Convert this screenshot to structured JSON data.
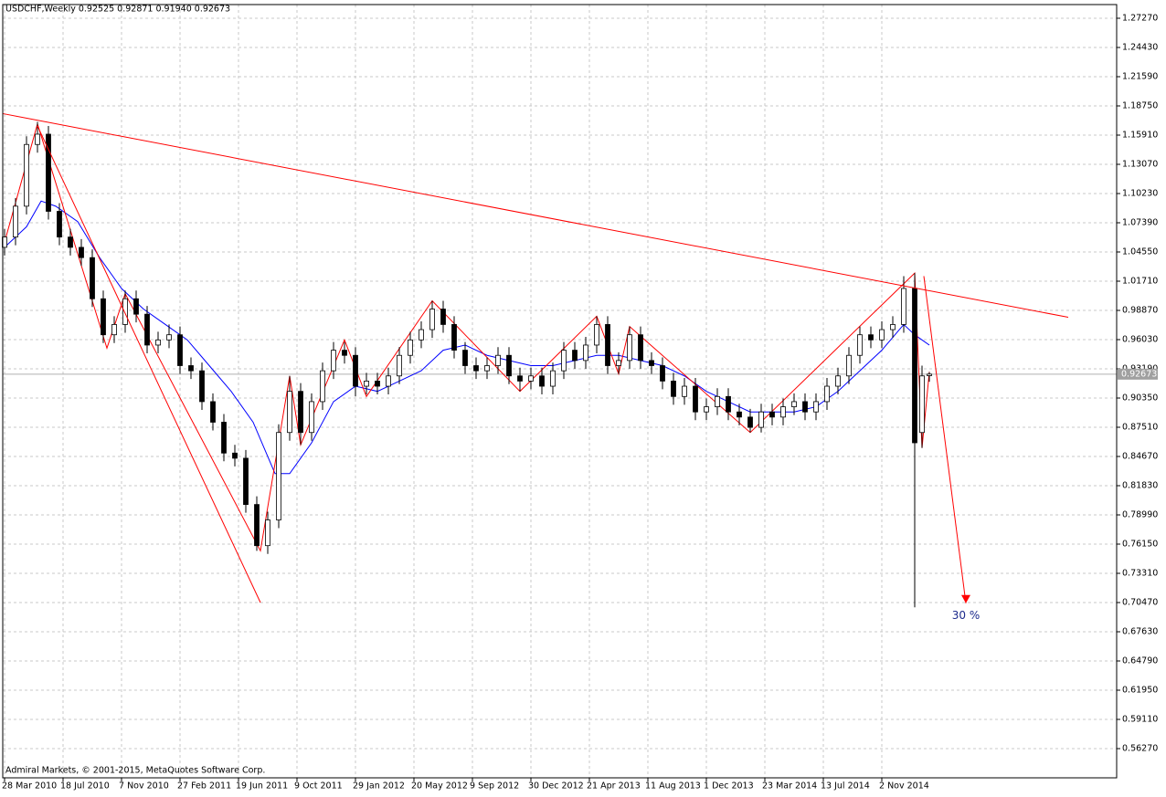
{
  "chart_data": {
    "type": "candlestick",
    "title": "USDCHF,Weekly  0.92525 0.92871 0.91940 0.92673",
    "copyright": "Admiral Markets, © 2001-2015, MetaQuotes Software Corp.",
    "xlim": [
      -0.5,
      304.25
    ],
    "ylim": [
      0.5343,
      1.286
    ],
    "grid": true,
    "up_color": "#ffffff",
    "down_color": "#000000",
    "xticks": [
      {
        "value": 0,
        "label": "28 Mar 2010"
      },
      {
        "value": 16,
        "label": "18 Jul 2010"
      },
      {
        "value": 32,
        "label": "7 Nov 2010"
      },
      {
        "value": 48,
        "label": "27 Feb 2011"
      },
      {
        "value": 64,
        "label": "19 Jun 2011"
      },
      {
        "value": 80,
        "label": "9 Oct 2011"
      },
      {
        "value": 96,
        "label": "29 Jan 2012"
      },
      {
        "value": 112,
        "label": "20 May 2012"
      },
      {
        "value": 128,
        "label": "9 Sep 2012"
      },
      {
        "value": 144,
        "label": "30 Dec 2012"
      },
      {
        "value": 160,
        "label": "21 Apr 2013"
      },
      {
        "value": 176,
        "label": "11 Aug 2013"
      },
      {
        "value": 192,
        "label": "1 Dec 2013"
      },
      {
        "value": 208,
        "label": "23 Mar 2014"
      },
      {
        "value": 224,
        "label": "13 Jul 2014"
      },
      {
        "value": 240,
        "label": "2 Nov 2014"
      }
    ],
    "yticks": [
      {
        "value": 1.2727,
        "label": "1.27270"
      },
      {
        "value": 1.2443,
        "label": "1.24430"
      },
      {
        "value": 1.2159,
        "label": "1.21590"
      },
      {
        "value": 1.1875,
        "label": "1.18750"
      },
      {
        "value": 1.1591,
        "label": "1.15910"
      },
      {
        "value": 1.1307,
        "label": "1.13070"
      },
      {
        "value": 1.1023,
        "label": "1.10230"
      },
      {
        "value": 1.0739,
        "label": "1.07390"
      },
      {
        "value": 1.0455,
        "label": "1.04550"
      },
      {
        "value": 1.0171,
        "label": "1.01710"
      },
      {
        "value": 0.9887,
        "label": "0.98870"
      },
      {
        "value": 0.9603,
        "label": "0.96030"
      },
      {
        "value": 0.9319,
        "label": "0.93190"
      },
      {
        "value": 0.9035,
        "label": "0.90350"
      },
      {
        "value": 0.8751,
        "label": "0.87510"
      },
      {
        "value": 0.8467,
        "label": "0.84670"
      },
      {
        "value": 0.8183,
        "label": "0.81830"
      },
      {
        "value": 0.7899,
        "label": "0.78990"
      },
      {
        "value": 0.7615,
        "label": "0.76150"
      },
      {
        "value": 0.7331,
        "label": "0.73310"
      },
      {
        "value": 0.7047,
        "label": "0.70470"
      },
      {
        "value": 0.6763,
        "label": "0.67630"
      },
      {
        "value": 0.6479,
        "label": "0.64790"
      },
      {
        "value": 0.6195,
        "label": "0.61950"
      },
      {
        "value": 0.5911,
        "label": "0.59110"
      },
      {
        "value": 0.5627,
        "label": "0.56270"
      }
    ],
    "x": [
      0,
      3,
      6,
      9,
      12,
      15,
      18,
      21,
      24,
      27,
      30,
      33,
      36,
      39,
      42,
      45,
      48,
      51,
      54,
      57,
      60,
      63,
      66,
      69,
      72,
      75,
      78,
      81,
      84,
      87,
      90,
      93,
      96,
      99,
      102,
      105,
      108,
      111,
      114,
      117,
      120,
      123,
      126,
      129,
      132,
      135,
      138,
      141,
      144,
      147,
      150,
      153,
      156,
      159,
      162,
      165,
      168,
      171,
      174,
      177,
      180,
      183,
      186,
      189,
      192,
      195,
      198,
      201,
      204,
      207,
      210,
      213,
      216,
      219,
      222,
      225,
      228,
      231,
      234,
      237,
      240,
      243,
      246,
      249,
      251,
      253
    ],
    "open": [
      1.05,
      1.06,
      1.09,
      1.15,
      1.16,
      1.085,
      1.06,
      1.05,
      1.04,
      1.0,
      0.965,
      0.975,
      1.0,
      0.985,
      0.955,
      0.96,
      0.965,
      0.935,
      0.93,
      0.9,
      0.88,
      0.85,
      0.845,
      0.8,
      0.76,
      0.785,
      0.87,
      0.91,
      0.87,
      0.9,
      0.93,
      0.95,
      0.945,
      0.915,
      0.92,
      0.915,
      0.925,
      0.945,
      0.96,
      0.97,
      0.99,
      0.975,
      0.95,
      0.935,
      0.93,
      0.935,
      0.945,
      0.925,
      0.92,
      0.925,
      0.915,
      0.93,
      0.95,
      0.94,
      0.955,
      0.975,
      0.935,
      0.94,
      0.965,
      0.94,
      0.935,
      0.92,
      0.905,
      0.915,
      0.89,
      0.895,
      0.905,
      0.89,
      0.885,
      0.875,
      0.89,
      0.885,
      0.895,
      0.9,
      0.89,
      0.9,
      0.915,
      0.925,
      0.945,
      0.965,
      0.96,
      0.97,
      0.975,
      1.01,
      0.87,
      0.92525
    ],
    "high": [
      1.068,
      1.098,
      1.158,
      1.172,
      1.168,
      1.093,
      1.068,
      1.058,
      1.048,
      1.008,
      0.983,
      1.008,
      1.008,
      0.993,
      0.968,
      0.975,
      0.973,
      0.943,
      0.938,
      0.908,
      0.888,
      0.858,
      0.853,
      0.808,
      0.793,
      0.878,
      0.925,
      0.918,
      0.908,
      0.938,
      0.958,
      0.958,
      0.953,
      0.928,
      0.928,
      0.933,
      0.953,
      0.968,
      0.978,
      0.998,
      0.998,
      0.983,
      0.958,
      0.943,
      0.943,
      0.953,
      0.953,
      0.933,
      0.933,
      0.933,
      0.938,
      0.958,
      0.958,
      0.963,
      0.983,
      0.983,
      0.948,
      0.973,
      0.973,
      0.948,
      0.943,
      0.928,
      0.923,
      0.923,
      0.903,
      0.913,
      0.913,
      0.898,
      0.893,
      0.898,
      0.898,
      0.903,
      0.908,
      0.908,
      0.908,
      0.923,
      0.933,
      0.953,
      0.973,
      0.973,
      0.978,
      0.983,
      1.022,
      1.025,
      0.935,
      0.92871
    ],
    "low": [
      1.042,
      1.052,
      1.082,
      1.142,
      1.077,
      1.052,
      1.042,
      1.032,
      0.992,
      0.957,
      0.957,
      0.967,
      0.977,
      0.947,
      0.947,
      0.952,
      0.927,
      0.922,
      0.892,
      0.872,
      0.842,
      0.837,
      0.792,
      0.755,
      0.752,
      0.777,
      0.862,
      0.858,
      0.862,
      0.892,
      0.922,
      0.937,
      0.905,
      0.907,
      0.907,
      0.907,
      0.917,
      0.937,
      0.952,
      0.962,
      0.967,
      0.942,
      0.927,
      0.922,
      0.922,
      0.927,
      0.917,
      0.91,
      0.912,
      0.907,
      0.907,
      0.922,
      0.932,
      0.932,
      0.947,
      0.927,
      0.927,
      0.932,
      0.932,
      0.927,
      0.912,
      0.897,
      0.897,
      0.882,
      0.882,
      0.887,
      0.882,
      0.877,
      0.87,
      0.87,
      0.877,
      0.877,
      0.887,
      0.882,
      0.882,
      0.892,
      0.907,
      0.917,
      0.937,
      0.952,
      0.952,
      0.962,
      0.967,
      0.7,
      0.855,
      0.9194
    ],
    "close": [
      1.06,
      1.09,
      1.15,
      1.16,
      1.085,
      1.06,
      1.05,
      1.04,
      1.0,
      0.965,
      0.975,
      1.0,
      0.985,
      0.955,
      0.96,
      0.965,
      0.935,
      0.93,
      0.9,
      0.88,
      0.85,
      0.845,
      0.8,
      0.76,
      0.785,
      0.87,
      0.91,
      0.87,
      0.9,
      0.93,
      0.95,
      0.945,
      0.915,
      0.92,
      0.915,
      0.925,
      0.945,
      0.96,
      0.97,
      0.99,
      0.975,
      0.95,
      0.935,
      0.93,
      0.935,
      0.945,
      0.925,
      0.92,
      0.925,
      0.915,
      0.93,
      0.95,
      0.94,
      0.955,
      0.975,
      0.935,
      0.94,
      0.965,
      0.94,
      0.935,
      0.92,
      0.905,
      0.915,
      0.89,
      0.895,
      0.905,
      0.89,
      0.885,
      0.875,
      0.89,
      0.885,
      0.895,
      0.9,
      0.89,
      0.9,
      0.915,
      0.925,
      0.945,
      0.965,
      0.96,
      0.97,
      0.975,
      1.01,
      0.86,
      0.925,
      0.92673
    ],
    "moving_average": {
      "color": "#0000ff",
      "x": [
        0,
        6,
        10,
        14,
        20,
        26,
        32,
        38,
        44,
        50,
        56,
        62,
        68,
        74,
        78,
        84,
        90,
        96,
        102,
        108,
        114,
        120,
        126,
        132,
        138,
        144,
        150,
        156,
        162,
        168,
        174,
        180,
        186,
        192,
        198,
        204,
        210,
        216,
        222,
        228,
        234,
        240,
        246,
        249,
        253
      ],
      "values": [
        1.05,
        1.07,
        1.095,
        1.09,
        1.075,
        1.04,
        1.01,
        0.99,
        0.975,
        0.96,
        0.935,
        0.91,
        0.88,
        0.83,
        0.83,
        0.86,
        0.9,
        0.915,
        0.91,
        0.92,
        0.93,
        0.95,
        0.955,
        0.945,
        0.94,
        0.935,
        0.935,
        0.94,
        0.945,
        0.945,
        0.94,
        0.935,
        0.925,
        0.91,
        0.9,
        0.89,
        0.89,
        0.89,
        0.895,
        0.91,
        0.93,
        0.95,
        0.975,
        0.965,
        0.955
      ]
    },
    "zigzag": {
      "color": "#ff0000",
      "x": [
        0,
        9,
        28,
        33,
        70,
        78,
        81,
        93,
        99,
        117,
        141,
        162,
        168,
        171,
        204,
        249,
        251,
        253
      ],
      "values": [
        1.055,
        1.17,
        0.952,
        1.005,
        0.755,
        0.925,
        0.858,
        0.96,
        0.905,
        0.998,
        0.91,
        0.983,
        0.927,
        0.973,
        0.87,
        1.025,
        0.855,
        0.929
      ]
    },
    "trendlines": [
      {
        "color": "#ff0000",
        "x": [
          -0.5,
          291
        ],
        "y": [
          1.18,
          0.982
        ]
      },
      {
        "color": "#ff0000",
        "x": [
          9,
          70
        ],
        "y": [
          1.168,
          0.7047
        ]
      },
      {
        "color": "#ff0000",
        "x": [
          251.5,
          263
        ],
        "y": [
          1.022,
          0.704
        ],
        "arrow": true
      }
    ],
    "annotation": {
      "text": "30 %",
      "x": 263,
      "y": 0.692,
      "color": "#1c2a8c"
    }
  }
}
